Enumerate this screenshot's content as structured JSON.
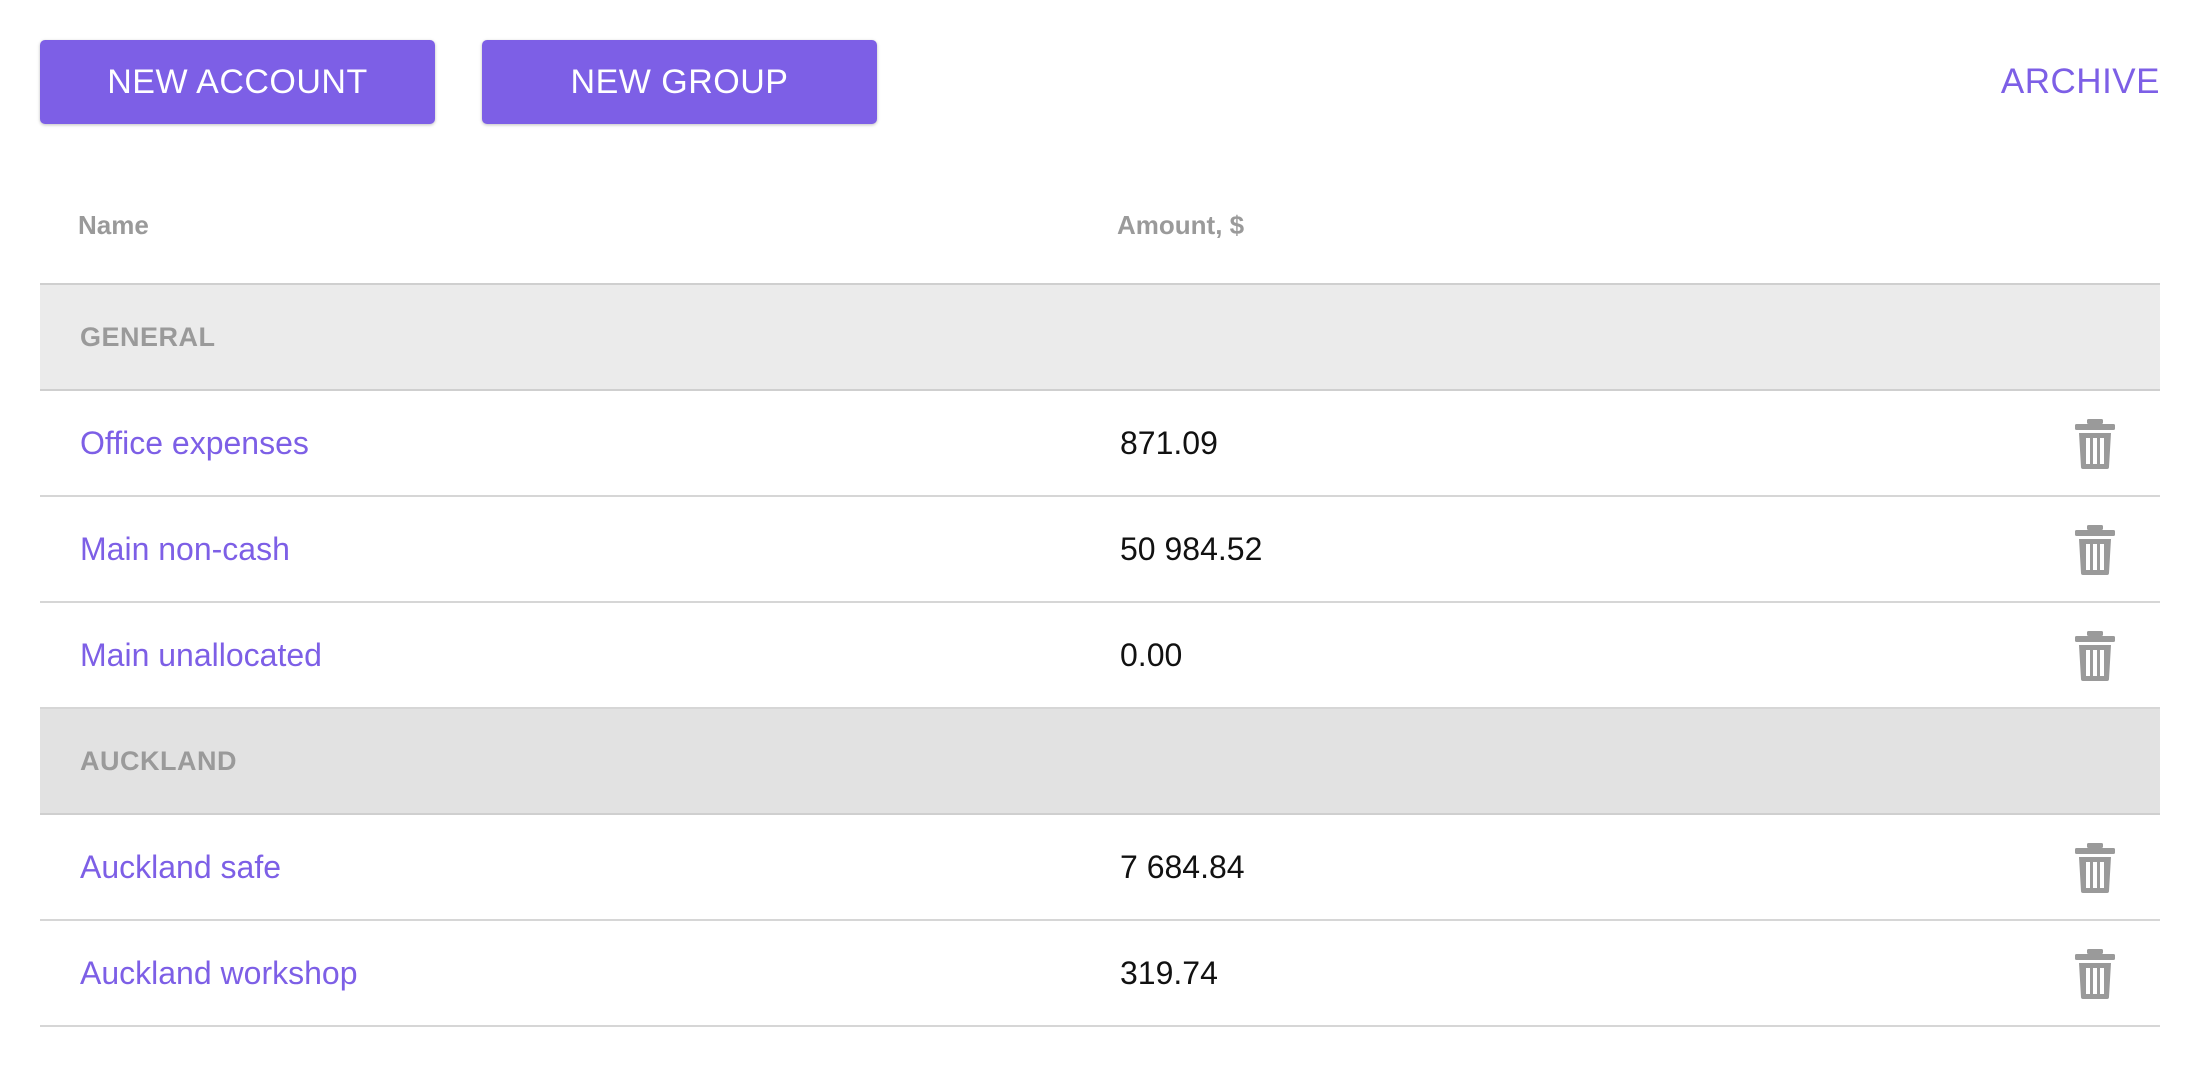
{
  "toolbar": {
    "new_account_label": "NEW ACCOUNT",
    "new_group_label": "NEW GROUP",
    "archive_label": "ARCHIVE"
  },
  "table": {
    "headers": {
      "name": "Name",
      "amount": "Amount, $"
    },
    "groups": [
      {
        "label": "GENERAL",
        "accounts": [
          {
            "name": "Office expenses",
            "amount": "871.09"
          },
          {
            "name": "Main non-cash",
            "amount": "50 984.52"
          },
          {
            "name": "Main unallocated",
            "amount": "0.00"
          }
        ]
      },
      {
        "label": "AUCKLAND",
        "accounts": [
          {
            "name": "Auckland safe",
            "amount": "7 684.84"
          },
          {
            "name": "Auckland workshop",
            "amount": "319.74"
          }
        ]
      }
    ]
  },
  "icons": {
    "delete": "trash-icon"
  },
  "colors": {
    "accent": "#7d5fe6",
    "muted_text": "#9a9a9a",
    "group_bg_general": "#ebebeb",
    "group_bg_auckland": "#e2e2e2"
  }
}
